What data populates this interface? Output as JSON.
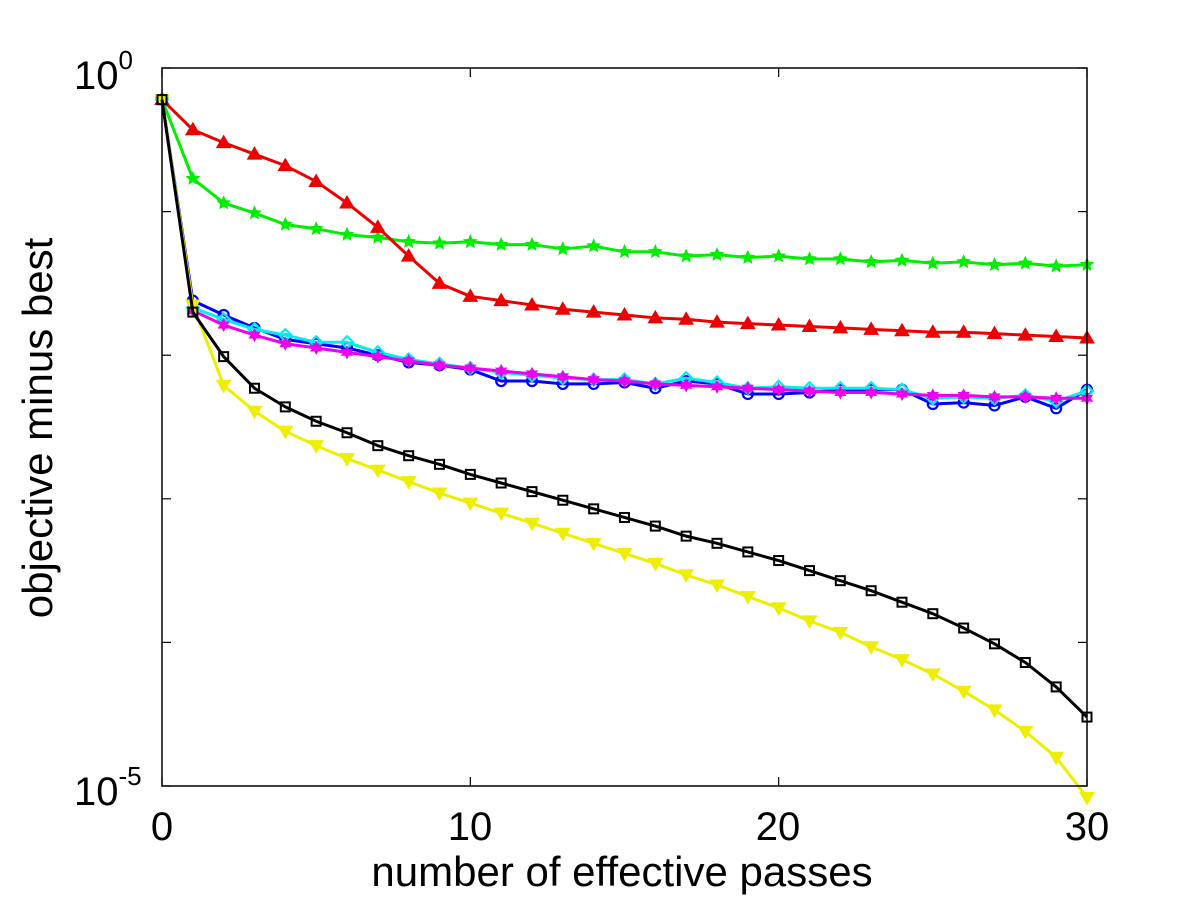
{
  "chart_data": {
    "type": "line",
    "title": "",
    "xlabel": "number of effective passes",
    "ylabel": "objective minus best",
    "xlim": [
      0,
      30
    ],
    "ylim_log10": [
      -5,
      0
    ],
    "yscale": "log",
    "grid": false,
    "legend": "none",
    "x_ticks": [
      {
        "label": "0",
        "value": 0
      },
      {
        "label": "10",
        "value": 10
      },
      {
        "label": "20",
        "value": 20
      },
      {
        "label": "30",
        "value": 30
      }
    ],
    "y_ticks": [
      {
        "base": "10",
        "exp": "0",
        "value_log10": 0
      },
      {
        "base": "10",
        "exp": "-5",
        "value_log10": -5
      }
    ],
    "x": [
      0,
      1,
      2,
      3,
      4,
      5,
      6,
      7,
      8,
      9,
      10,
      11,
      12,
      13,
      14,
      15,
      16,
      17,
      18,
      19,
      20,
      21,
      22,
      23,
      24,
      25,
      26,
      27,
      28,
      29,
      30
    ],
    "series": [
      {
        "name": "green-star",
        "color": "#00ee00",
        "marker": "star",
        "log10_values": [
          -0.22,
          -0.77,
          -0.94,
          -1.01,
          -1.09,
          -1.12,
          -1.16,
          -1.18,
          -1.21,
          -1.22,
          -1.21,
          -1.23,
          -1.23,
          -1.26,
          -1.24,
          -1.28,
          -1.28,
          -1.31,
          -1.3,
          -1.32,
          -1.31,
          -1.33,
          -1.33,
          -1.35,
          -1.34,
          -1.36,
          -1.35,
          -1.37,
          -1.36,
          -1.38,
          -1.37
        ]
      },
      {
        "name": "red-triangle",
        "color": "#ee0000",
        "marker": "triangle-up",
        "log10_values": [
          -0.22,
          -0.43,
          -0.52,
          -0.6,
          -0.68,
          -0.79,
          -0.94,
          -1.11,
          -1.31,
          -1.5,
          -1.59,
          -1.62,
          -1.65,
          -1.68,
          -1.7,
          -1.72,
          -1.74,
          -1.75,
          -1.77,
          -1.78,
          -1.79,
          -1.8,
          -1.81,
          -1.82,
          -1.83,
          -1.84,
          -1.84,
          -1.85,
          -1.86,
          -1.87,
          -1.88
        ]
      },
      {
        "name": "blue-circle",
        "color": "#0000ff",
        "marker": "circle",
        "log10_values": [
          -0.22,
          -1.62,
          -1.72,
          -1.81,
          -1.89,
          -1.92,
          -1.95,
          -2.0,
          -2.05,
          -2.07,
          -2.1,
          -2.18,
          -2.18,
          -2.2,
          -2.2,
          -2.19,
          -2.23,
          -2.18,
          -2.2,
          -2.27,
          -2.27,
          -2.26,
          -2.24,
          -2.24,
          -2.24,
          -2.34,
          -2.33,
          -2.35,
          -2.29,
          -2.37,
          -2.24
        ]
      },
      {
        "name": "cyan-diamond",
        "color": "#00eeee",
        "marker": "diamond",
        "log10_values": [
          -0.22,
          -1.67,
          -1.75,
          -1.82,
          -1.86,
          -1.91,
          -1.91,
          -1.98,
          -2.03,
          -2.06,
          -2.09,
          -2.12,
          -2.14,
          -2.16,
          -2.17,
          -2.17,
          -2.2,
          -2.16,
          -2.19,
          -2.23,
          -2.22,
          -2.23,
          -2.23,
          -2.23,
          -2.24,
          -2.3,
          -2.29,
          -2.3,
          -2.28,
          -2.32,
          -2.25
        ]
      },
      {
        "name": "magenta-hexagram",
        "color": "#ee00ee",
        "marker": "hexagram",
        "log10_values": [
          -0.22,
          -1.69,
          -1.79,
          -1.86,
          -1.92,
          -1.95,
          -1.98,
          -2.01,
          -2.04,
          -2.07,
          -2.09,
          -2.11,
          -2.13,
          -2.15,
          -2.17,
          -2.18,
          -2.2,
          -2.21,
          -2.22,
          -2.23,
          -2.24,
          -2.25,
          -2.26,
          -2.26,
          -2.27,
          -2.28,
          -2.28,
          -2.29,
          -2.29,
          -2.3,
          -2.3
        ]
      },
      {
        "name": "yellow-triangle-down",
        "color": "#eeee00",
        "marker": "triangle-down",
        "log10_values": [
          -0.22,
          -1.65,
          -2.21,
          -2.39,
          -2.53,
          -2.63,
          -2.72,
          -2.8,
          -2.88,
          -2.96,
          -3.03,
          -3.1,
          -3.17,
          -3.24,
          -3.31,
          -3.38,
          -3.45,
          -3.53,
          -3.6,
          -3.68,
          -3.76,
          -3.85,
          -3.93,
          -4.03,
          -4.12,
          -4.22,
          -4.34,
          -4.47,
          -4.62,
          -4.8,
          -5.08
        ]
      },
      {
        "name": "black-square",
        "color": "#000000",
        "marker": "square",
        "log10_values": [
          -0.22,
          -1.7,
          -2.01,
          -2.23,
          -2.36,
          -2.46,
          -2.54,
          -2.63,
          -2.7,
          -2.76,
          -2.83,
          -2.89,
          -2.95,
          -3.01,
          -3.07,
          -3.13,
          -3.19,
          -3.26,
          -3.31,
          -3.37,
          -3.43,
          -3.5,
          -3.57,
          -3.64,
          -3.72,
          -3.8,
          -3.9,
          -4.01,
          -4.14,
          -4.31,
          -4.52
        ]
      }
    ]
  }
}
